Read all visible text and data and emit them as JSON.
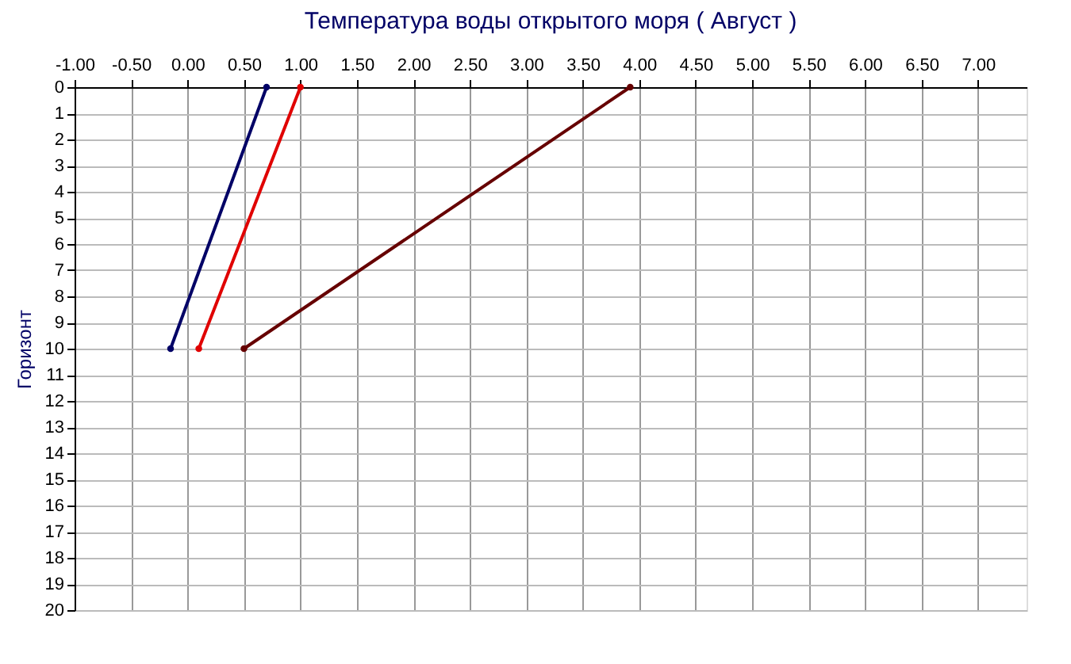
{
  "chart_data": {
    "type": "line",
    "title": "Температура воды открытого моря    ( Август )",
    "ylabel": "Горизонт",
    "series": [
      {
        "color": "#000066",
        "x": [
          0.7,
          -0.15
        ],
        "values": [
          0,
          10
        ]
      },
      {
        "color": "#e00000",
        "x": [
          1.0,
          0.1
        ],
        "values": [
          0,
          10
        ]
      },
      {
        "color": "#660000",
        "x": [
          3.92,
          0.5
        ],
        "values": [
          0,
          10
        ]
      }
    ],
    "xlim": [
      -1.0,
      7.43
    ],
    "xticks": [
      {
        "value": -1.0,
        "label": "-1.00"
      },
      {
        "value": -0.5,
        "label": "-0.50"
      },
      {
        "value": 0,
        "label": "0.00"
      },
      {
        "value": 0.5,
        "label": "0.50"
      },
      {
        "value": 1.0,
        "label": "1.00"
      },
      {
        "value": 1.5,
        "label": "1.50"
      },
      {
        "value": 2.0,
        "label": "2.00"
      },
      {
        "value": 2.5,
        "label": "2.50"
      },
      {
        "value": 3.0,
        "label": "3.00"
      },
      {
        "value": 3.5,
        "label": "3.50"
      },
      {
        "value": 4.0,
        "label": "4.00"
      },
      {
        "value": 4.5,
        "label": "4.50"
      },
      {
        "value": 5.0,
        "label": "5.00"
      },
      {
        "value": 5.5,
        "label": "5.50"
      },
      {
        "value": 6.0,
        "label": "6.00"
      },
      {
        "value": 6.5,
        "label": "6.50"
      },
      {
        "value": 7.0,
        "label": "7.00"
      }
    ],
    "ylim": [
      20,
      0
    ],
    "yticks": [
      0,
      1,
      2,
      3,
      4,
      5,
      6,
      7,
      8,
      9,
      10,
      11,
      12,
      13,
      14,
      15,
      16,
      17,
      18,
      19,
      20
    ],
    "grid": true,
    "marker": "circle",
    "line_style": "solid"
  }
}
